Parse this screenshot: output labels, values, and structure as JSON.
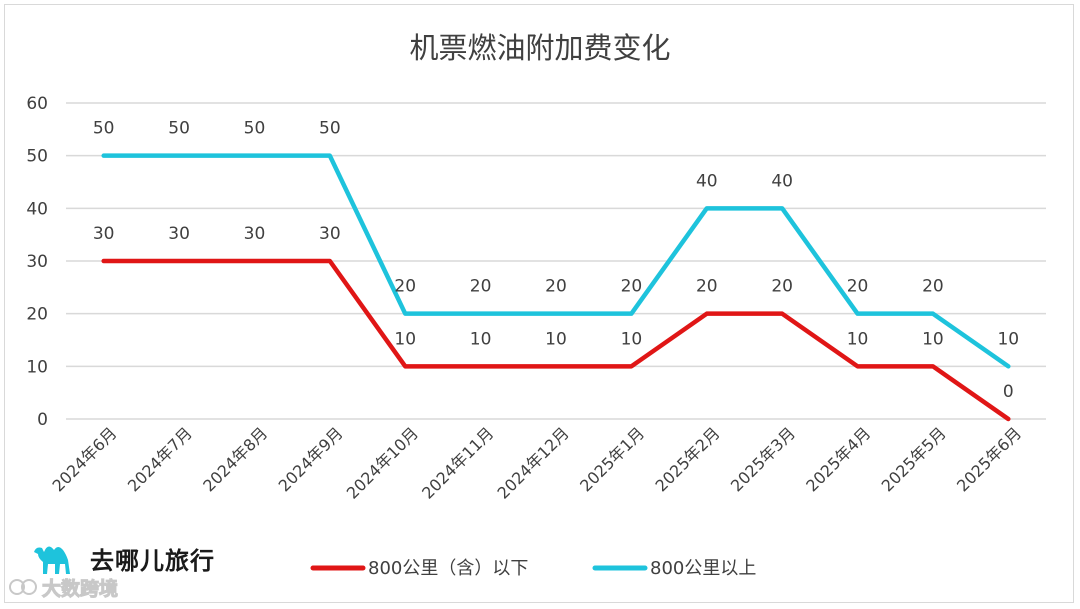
{
  "brand": {
    "logo_text": "去哪儿旅行"
  },
  "watermark": {
    "text": "大数跨境"
  },
  "colors": {
    "series_below": "#e01616",
    "series_above": "#1ec3dc",
    "grid": "#d9d9d9",
    "text": "#404040"
  },
  "chart_data": {
    "type": "line",
    "title": "机票燃油附加费变化",
    "categories": [
      "2024年6月",
      "2024年7月",
      "2024年8月",
      "2024年9月",
      "2024年10月",
      "2024年11月",
      "2024年12月",
      "2025年1月",
      "2025年2月",
      "2025年3月",
      "2025年4月",
      "2025年5月",
      "2025年6月"
    ],
    "ylim": [
      0,
      60
    ],
    "yticks": [
      0,
      10,
      20,
      30,
      40,
      50,
      60
    ],
    "grid": true,
    "legend_position": "bottom",
    "series": [
      {
        "name": "800公里（含）以下",
        "color": "#e01616",
        "values": [
          30,
          30,
          30,
          30,
          10,
          10,
          10,
          10,
          20,
          20,
          10,
          10,
          0
        ]
      },
      {
        "name": "800公里以上",
        "color": "#1ec3dc",
        "values": [
          50,
          50,
          50,
          50,
          20,
          20,
          20,
          20,
          40,
          40,
          20,
          20,
          10
        ]
      }
    ]
  }
}
